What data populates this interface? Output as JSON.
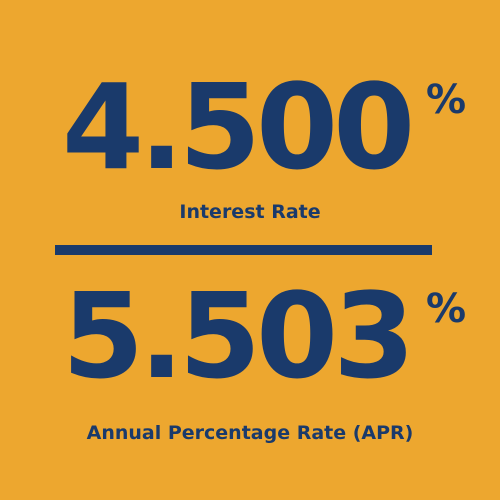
{
  "colors": {
    "background": "#EDA72F",
    "foreground": "#1A3A6B"
  },
  "interest_rate": {
    "value": "4.500",
    "percent_sign": "%",
    "label": "Interest Rate"
  },
  "apr": {
    "value": "5.503",
    "percent_sign": "%",
    "label": "Annual Percentage Rate (APR)"
  }
}
